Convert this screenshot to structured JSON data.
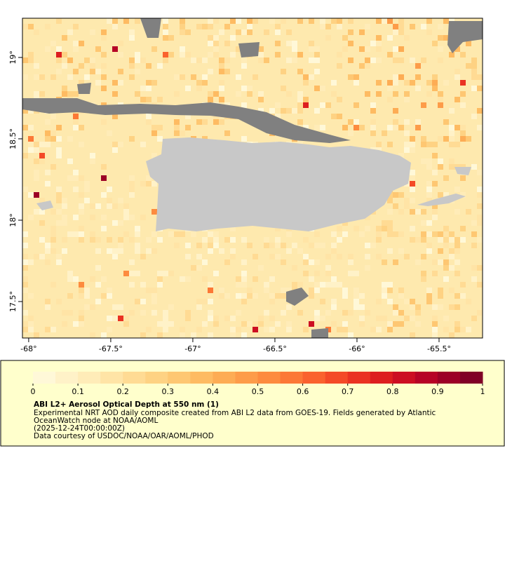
{
  "map": {
    "xlim": [
      -68.038,
      -65.235
    ],
    "ylim": [
      17.276,
      19.241
    ],
    "xticks": [
      {
        "value": -68,
        "label": "-68°"
      },
      {
        "value": -67.5,
        "label": "-67.5°"
      },
      {
        "value": -67,
        "label": "-67°"
      },
      {
        "value": -66.5,
        "label": "-66.5°"
      },
      {
        "value": -66,
        "label": "-66°"
      },
      {
        "value": -65.5,
        "label": "-65.5°"
      }
    ],
    "yticks": [
      {
        "value": 17.5,
        "label": "17.5°"
      },
      {
        "value": 18,
        "label": "18°"
      },
      {
        "value": 18.5,
        "label": "18.5°"
      },
      {
        "value": 19,
        "label": "19°"
      }
    ]
  },
  "colorbar": {
    "lim": [
      0,
      1
    ],
    "ticks": [
      0,
      0.1,
      0.2,
      0.3,
      0.4,
      0.5,
      0.6,
      0.7,
      0.8,
      0.9,
      1
    ],
    "colors": [
      "#fff8d8",
      "#fff2c8",
      "#ffecb8",
      "#ffe4a6",
      "#ffdb94",
      "#fed283",
      "#fec772",
      "#febb62",
      "#fdac54",
      "#fd9c49",
      "#fd8b3f",
      "#fc7836",
      "#fa622e",
      "#f44a27",
      "#ea3222",
      "#dd1e1f",
      "#cc0e22",
      "#b60326",
      "#9c0026",
      "#800026"
    ]
  },
  "legend": {
    "title": "ABI L2+ Aerosol Optical Depth at 550 nm (1)",
    "lines": [
      "Experimental NRT AOD daily composite created from ABI L2 data from GOES-19. Fields generated by Atlantic",
      "OceanWatch node at NOAA/AOML",
      "(2025-12-24T00:00:00Z)",
      "Data courtesy of USDOC/NOAA/OAR/AOML/PHOD"
    ]
  }
}
